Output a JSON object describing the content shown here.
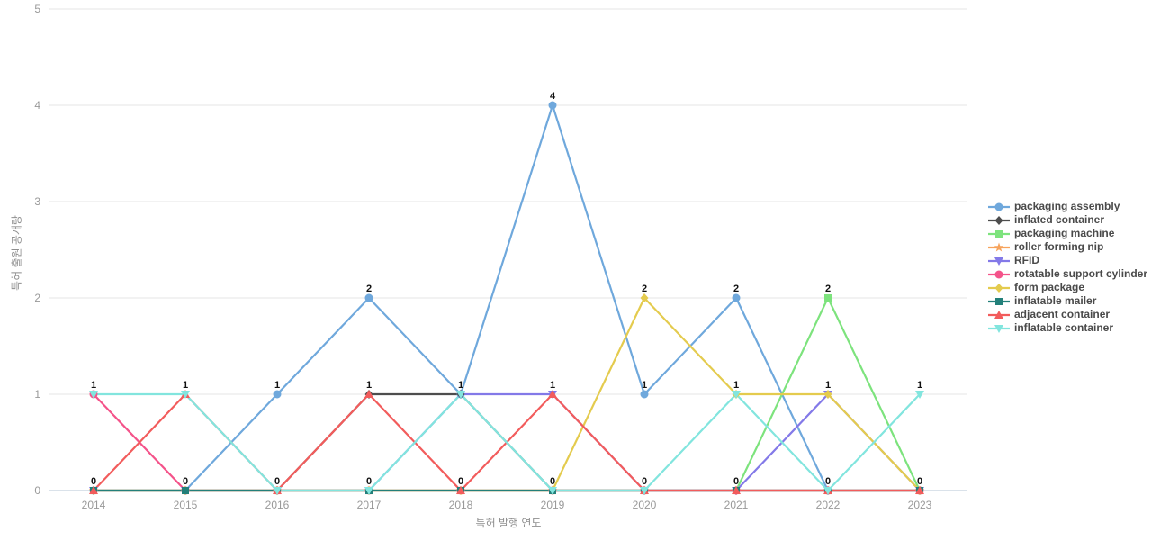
{
  "chart_data": {
    "type": "line",
    "title": "",
    "xlabel": "특허 발행 연도",
    "ylabel": "특허 출원 공개량",
    "x": [
      2014,
      2015,
      2016,
      2017,
      2018,
      2019,
      2020,
      2021,
      2022,
      2023
    ],
    "ylim": [
      0,
      5
    ],
    "yticks": [
      0,
      1,
      2,
      3,
      4,
      5
    ],
    "grid": true,
    "legend_position": "right",
    "series": [
      {
        "name": "packaging assembly",
        "color": "#6fa8dc",
        "marker": "circle",
        "values": [
          0,
          0,
          1,
          2,
          1,
          4,
          1,
          2,
          0,
          0
        ]
      },
      {
        "name": "inflated container",
        "color": "#4d4d4d",
        "marker": "diamond",
        "values": [
          0,
          0,
          0,
          1,
          1,
          0,
          0,
          0,
          0,
          0
        ]
      },
      {
        "name": "packaging machine",
        "color": "#7de37d",
        "marker": "square",
        "values": [
          0,
          0,
          0,
          0,
          0,
          0,
          0,
          0,
          2,
          0
        ]
      },
      {
        "name": "roller forming nip",
        "color": "#f7a35c",
        "marker": "star",
        "values": [
          0,
          0,
          0,
          0,
          0,
          0,
          0,
          0,
          0,
          0
        ]
      },
      {
        "name": "RFID",
        "color": "#8379e8",
        "marker": "triangle-down",
        "values": [
          0,
          0,
          0,
          0,
          1,
          1,
          0,
          0,
          1,
          0
        ]
      },
      {
        "name": "rotatable support cylinder",
        "color": "#f4538a",
        "marker": "circle",
        "values": [
          1,
          0,
          0,
          0,
          0,
          0,
          0,
          0,
          0,
          0
        ]
      },
      {
        "name": "form package",
        "color": "#e4cb4e",
        "marker": "diamond",
        "values": [
          0,
          0,
          0,
          0,
          0,
          0,
          2,
          1,
          1,
          0
        ]
      },
      {
        "name": "inflatable mailer",
        "color": "#23807a",
        "marker": "square",
        "values": [
          0,
          0,
          0,
          0,
          0,
          0,
          0,
          0,
          0,
          0
        ]
      },
      {
        "name": "adjacent container",
        "color": "#f25c5c",
        "marker": "triangle-up",
        "values": [
          0,
          1,
          0,
          1,
          0,
          1,
          0,
          0,
          0,
          0
        ]
      },
      {
        "name": "inflatable container",
        "color": "#82e5de",
        "marker": "triangle-down",
        "values": [
          1,
          1,
          0,
          0,
          1,
          0,
          0,
          1,
          0,
          1
        ]
      }
    ],
    "colors": {
      "gridline": "#e6e6e6",
      "axis_baseline": "#b4c6d4",
      "tick_text": "#999999",
      "axis_title_text": "#8f8f8f",
      "value_label_text": "#111111"
    }
  }
}
